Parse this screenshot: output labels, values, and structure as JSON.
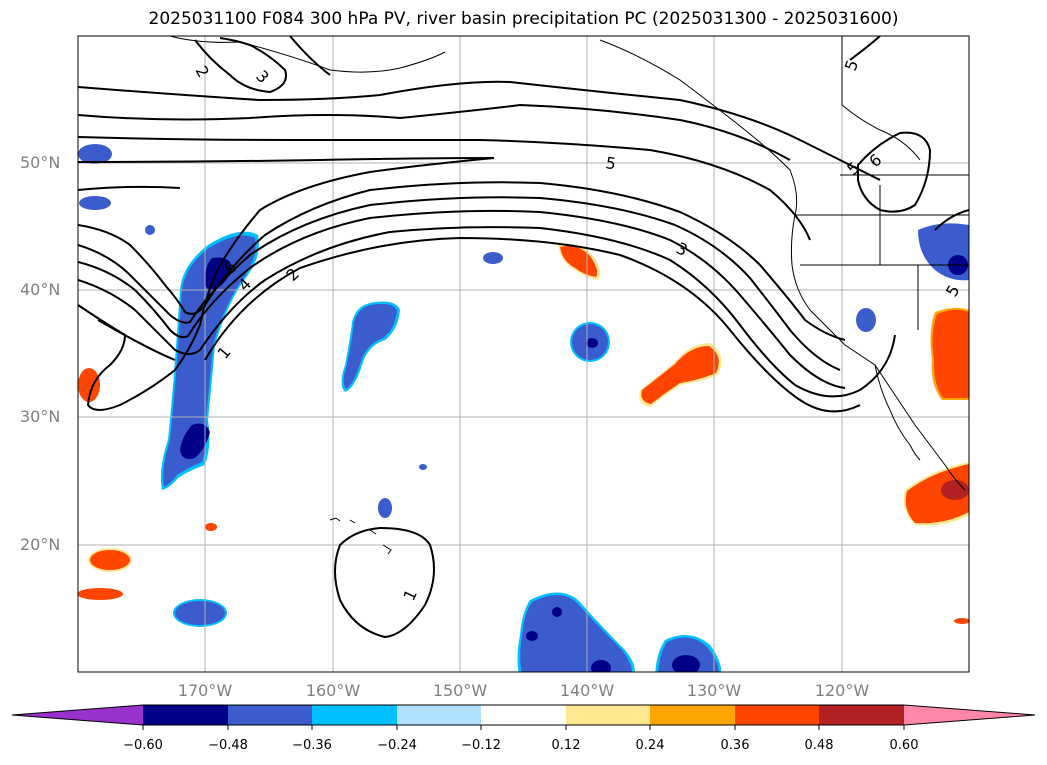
{
  "title": "2025031100 F084 300 hPa PV, river basin precipitation PC (2025031300 - 2025031600)",
  "map": {
    "projection": "cylindrical",
    "extent_lon": [
      -180,
      -110
    ],
    "extent_lat": [
      10,
      60
    ],
    "gridlines": true,
    "lat_labels": [
      "50°N",
      "40°N",
      "30°N",
      "20°N"
    ],
    "lon_labels": [
      "170°W",
      "160°W",
      "150°W",
      "140°W",
      "130°W",
      "120°W"
    ],
    "contour_labels": [
      "2",
      "3",
      "5",
      "5",
      "5",
      "6",
      "6",
      "4",
      "2",
      "1",
      "3",
      "1",
      "5"
    ]
  },
  "colorbar": {
    "extend": "both",
    "colors": [
      "#9932cc",
      "#000088",
      "#3a5ccc",
      "#00bfff",
      "#b0e2ff",
      "#ffffff",
      "#ffe890",
      "#ffa500",
      "#ff4500",
      "#b22222",
      "#ff88aa",
      "#ff88aa"
    ],
    "tick_labels": [
      "−0.60",
      "−0.48",
      "−0.36",
      "−0.24",
      "−0.12",
      "0.12",
      "0.24",
      "0.36",
      "0.48",
      "0.60"
    ]
  }
}
